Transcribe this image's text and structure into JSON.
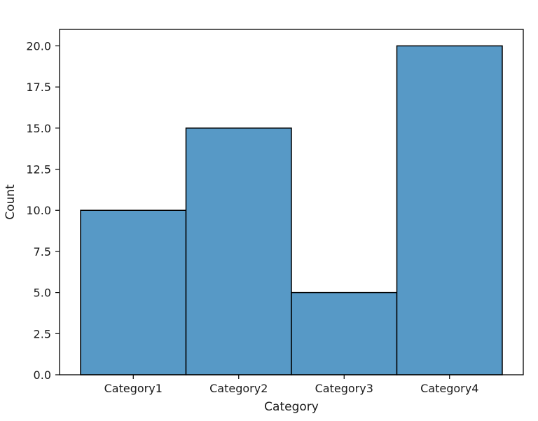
{
  "chart_data": {
    "type": "bar",
    "title": "",
    "xlabel": "Category",
    "ylabel": "Count",
    "categories": [
      "Category1",
      "Category2",
      "Category3",
      "Category4"
    ],
    "values": [
      10,
      15,
      5,
      20
    ],
    "ylim": [
      0,
      21
    ],
    "yticks": [
      0.0,
      2.5,
      5.0,
      7.5,
      10.0,
      12.5,
      15.0,
      17.5,
      20.0
    ],
    "ytick_labels": [
      "0.0",
      "2.5",
      "5.0",
      "7.5",
      "10.0",
      "12.5",
      "15.0",
      "17.5",
      "20.0"
    ],
    "grid": false,
    "legend": "none",
    "bar_color": "#5799c6",
    "edge_color": "#000000"
  }
}
